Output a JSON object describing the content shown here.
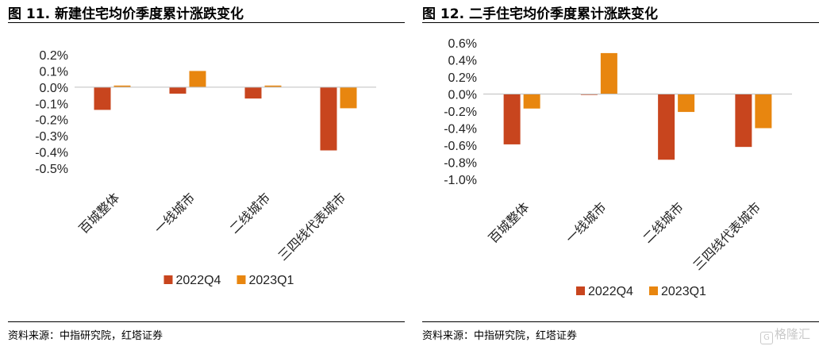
{
  "charts": [
    {
      "title": "图 11. 新建住宅均价季度累计涨跌变化",
      "source": "资料来源：中指研究院，红塔证券"
    },
    {
      "title": "图 12. 二手住宅均价季度累计涨跌变化",
      "source": "资料来源：中指研究院，红塔证券"
    }
  ],
  "watermark": {
    "text": "格隆汇",
    "icon": "logo-icon"
  },
  "chart_data": [
    {
      "type": "bar",
      "categories": [
        "百城整体",
        "一线城市",
        "二线城市",
        "三四线代表城市"
      ],
      "series": [
        {
          "name": "2022Q4",
          "values": [
            -0.14,
            -0.04,
            -0.07,
            -0.39
          ],
          "color": "#C8451E"
        },
        {
          "name": "2023Q1",
          "values": [
            0.01,
            0.1,
            0.01,
            -0.13
          ],
          "color": "#E8860F"
        }
      ],
      "ylim": [
        -0.5,
        0.2
      ],
      "yticks": [
        0.2,
        0.1,
        0.0,
        -0.1,
        -0.2,
        -0.3,
        -0.4,
        -0.5
      ],
      "ytick_labels": [
        "0.2%",
        "0.1%",
        "0.0%",
        "-0.1%",
        "-0.2%",
        "-0.3%",
        "-0.4%",
        "-0.5%"
      ],
      "legend": "bottom",
      "grid": false
    },
    {
      "type": "bar",
      "categories": [
        "百城整体",
        "一线城市",
        "二线城市",
        "三四线代表城市"
      ],
      "series": [
        {
          "name": "2022Q4",
          "values": [
            -0.59,
            -0.01,
            -0.77,
            -0.62
          ],
          "color": "#C8451E"
        },
        {
          "name": "2023Q1",
          "values": [
            -0.17,
            0.48,
            -0.21,
            -0.4
          ],
          "color": "#E8860F"
        }
      ],
      "ylim": [
        -1.0,
        0.6
      ],
      "yticks": [
        0.6,
        0.4,
        0.2,
        0.0,
        -0.2,
        -0.4,
        -0.6,
        -0.8,
        -1.0
      ],
      "ytick_labels": [
        "0.6%",
        "0.4%",
        "0.2%",
        "0.0%",
        "-0.2%",
        "-0.4%",
        "-0.6%",
        "-0.8%",
        "-1.0%"
      ],
      "legend": "bottom",
      "grid": false
    }
  ]
}
